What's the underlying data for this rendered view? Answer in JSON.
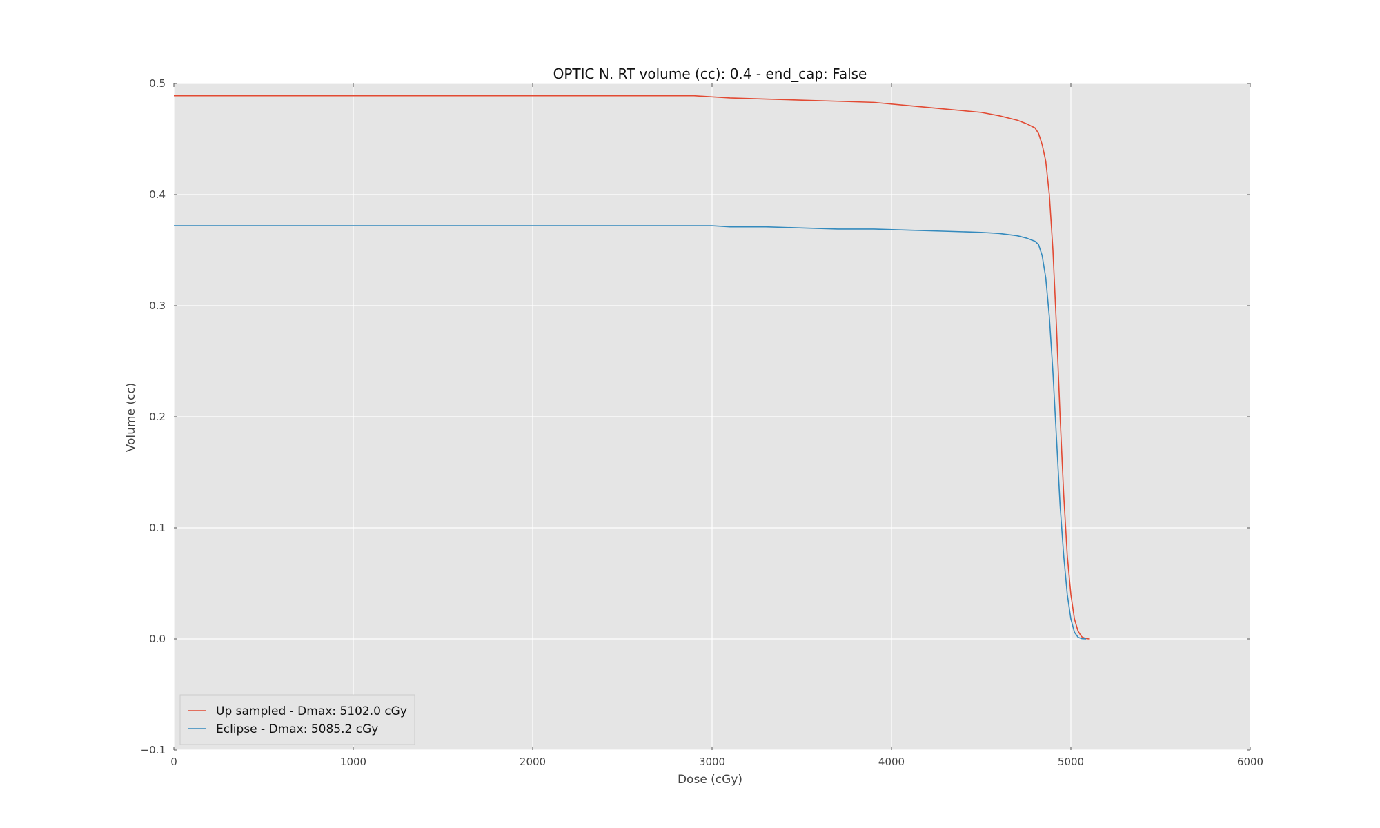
{
  "chart_data": {
    "type": "line",
    "title": "OPTIC N. RT volume (cc): 0.4 - end_cap: False",
    "xlabel": "Dose (cGy)",
    "ylabel": "Volume (cc)",
    "xlim": [
      0,
      6000
    ],
    "ylim": [
      -0.1,
      0.5
    ],
    "xticks": [
      0,
      1000,
      2000,
      3000,
      4000,
      5000,
      6000
    ],
    "xtick_labels": [
      "0",
      "1000",
      "2000",
      "3000",
      "4000",
      "5000",
      "6000"
    ],
    "yticks": [
      -0.1,
      0.0,
      0.1,
      0.2,
      0.3,
      0.4,
      0.5
    ],
    "ytick_labels": [
      "−0.1",
      "0.0",
      "0.1",
      "0.2",
      "0.3",
      "0.4",
      "0.5"
    ],
    "grid": true,
    "legend_position": "lower-left",
    "background_color": "#e5e5e5",
    "series": [
      {
        "name": "Up sampled - Dmax: 5102.0 cGy",
        "color": "#e24a33",
        "x": [
          0,
          1000,
          2000,
          2900,
          3000,
          3100,
          3300,
          3500,
          3700,
          3900,
          4100,
          4300,
          4500,
          4600,
          4700,
          4750,
          4800,
          4820,
          4840,
          4860,
          4880,
          4900,
          4920,
          4940,
          4960,
          4980,
          5000,
          5020,
          5040,
          5060,
          5080,
          5102
        ],
        "y": [
          0.489,
          0.489,
          0.489,
          0.489,
          0.488,
          0.487,
          0.486,
          0.485,
          0.484,
          0.483,
          0.48,
          0.477,
          0.474,
          0.471,
          0.467,
          0.464,
          0.46,
          0.455,
          0.445,
          0.43,
          0.4,
          0.35,
          0.28,
          0.2,
          0.13,
          0.075,
          0.04,
          0.018,
          0.007,
          0.002,
          0.0005,
          0.0
        ]
      },
      {
        "name": "Eclipse - Dmax: 5085.2 cGy",
        "color": "#348abd",
        "x": [
          0,
          1000,
          2000,
          3000,
          3100,
          3300,
          3500,
          3700,
          3900,
          4100,
          4300,
          4500,
          4600,
          4700,
          4750,
          4800,
          4820,
          4840,
          4860,
          4880,
          4900,
          4920,
          4940,
          4960,
          4980,
          5000,
          5020,
          5040,
          5060,
          5085
        ],
        "y": [
          0.372,
          0.372,
          0.372,
          0.372,
          0.371,
          0.371,
          0.37,
          0.369,
          0.369,
          0.368,
          0.367,
          0.366,
          0.365,
          0.363,
          0.361,
          0.358,
          0.355,
          0.345,
          0.325,
          0.29,
          0.24,
          0.18,
          0.12,
          0.075,
          0.04,
          0.018,
          0.006,
          0.0015,
          0.0003,
          0.0
        ]
      }
    ]
  }
}
